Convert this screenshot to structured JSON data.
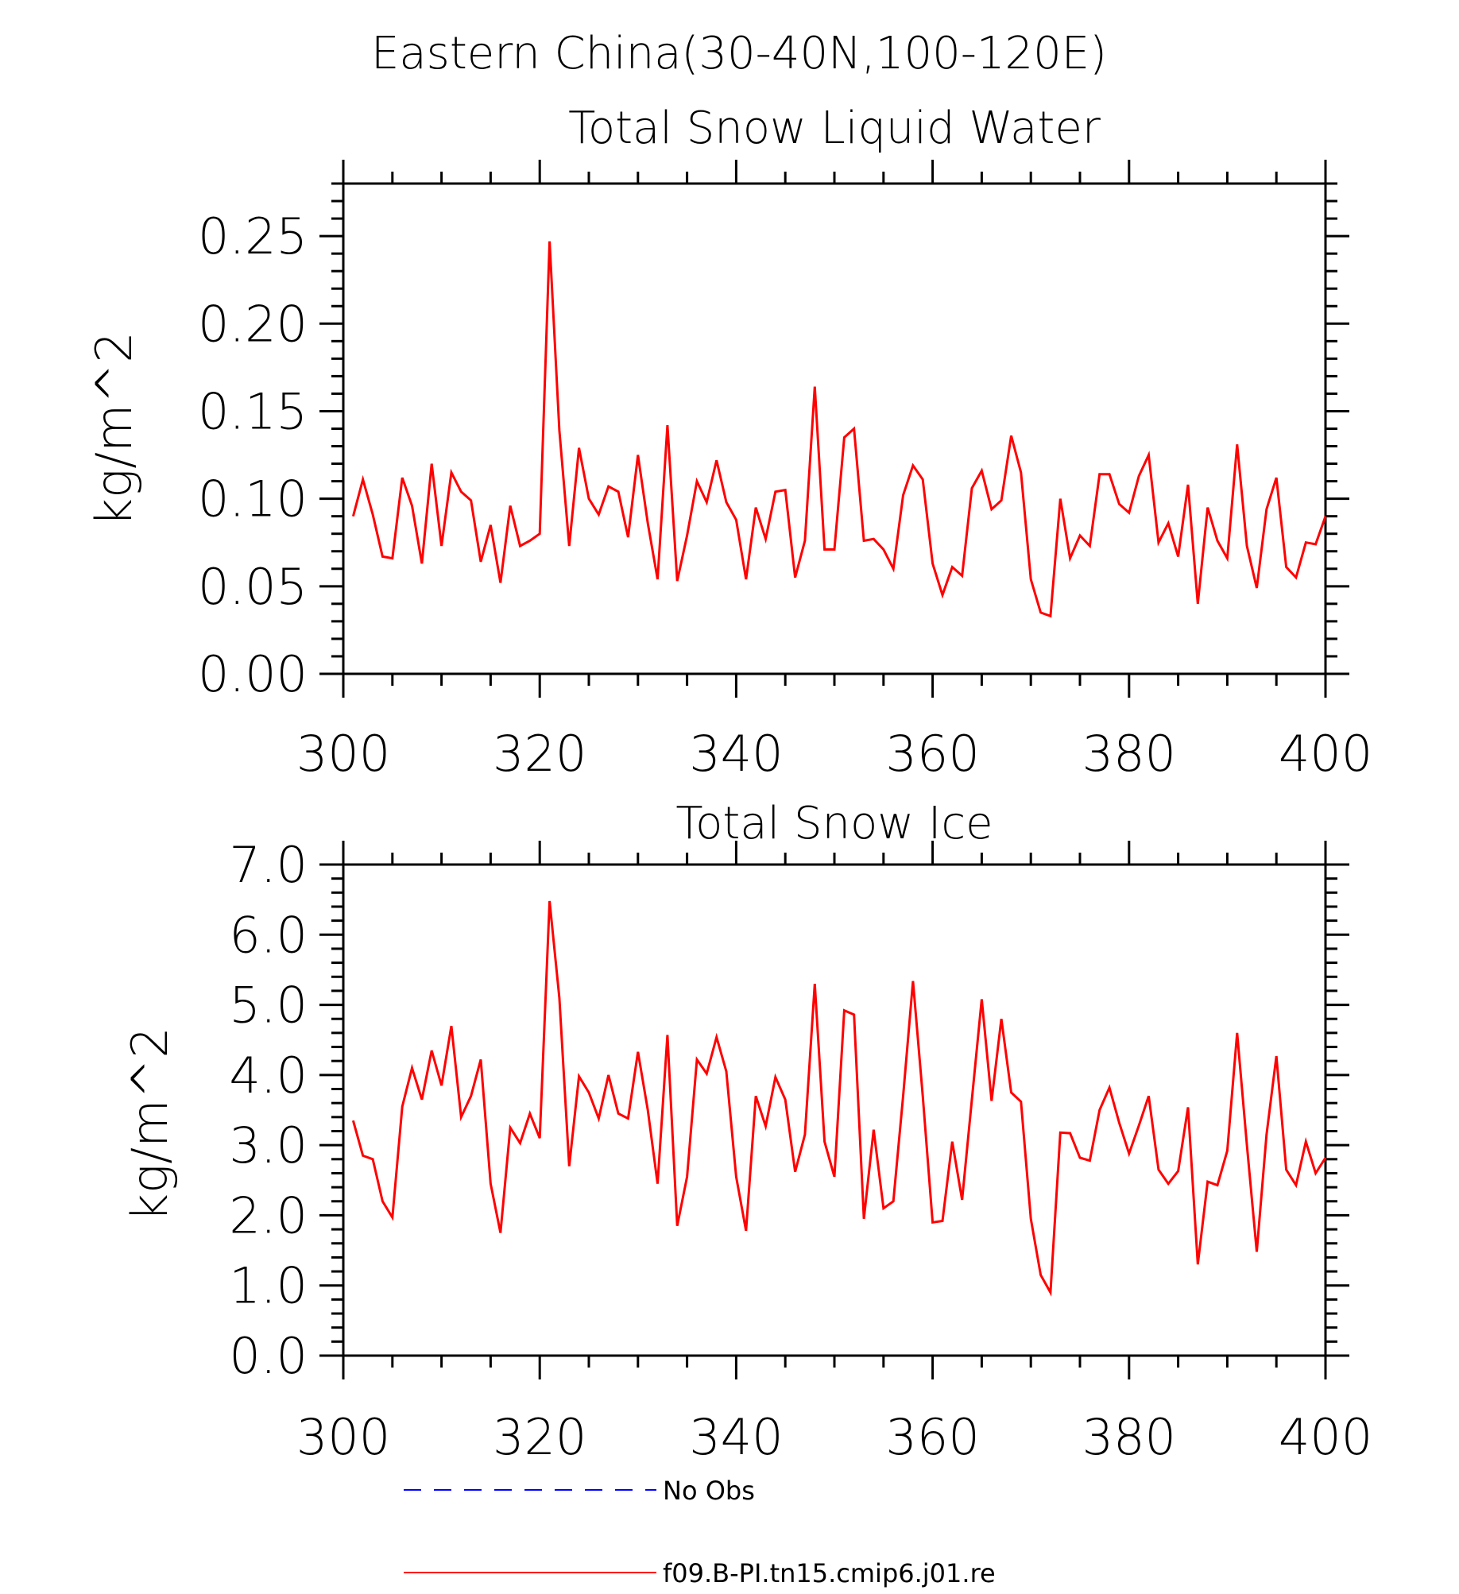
{
  "figure": {
    "title": "Eastern China(30-40N,100-120E)",
    "legend": [
      {
        "label": "No Obs",
        "color": "#0000ff",
        "style": "dashed"
      },
      {
        "label": "f09.B-PI.tn15.cmip6.j01.re",
        "color": "#ff0000",
        "style": "solid"
      }
    ]
  },
  "chart_data": [
    {
      "type": "line",
      "title": "Total Snow Liquid Water",
      "xlabel": "",
      "ylabel": "kg/m^2",
      "xlim": [
        300,
        400
      ],
      "ylim": [
        0.0,
        0.28
      ],
      "x_ticks": [
        300,
        320,
        340,
        360,
        380,
        400
      ],
      "x_tick_labels": [
        "300",
        "320",
        "340",
        "360",
        "380",
        "400"
      ],
      "y_ticks": [
        0.0,
        0.05,
        0.1,
        0.15,
        0.2,
        0.25
      ],
      "y_tick_labels": [
        "0.00",
        "0.05",
        "0.10",
        "0.15",
        "0.20",
        "0.25"
      ],
      "grid": false,
      "x_start": 301,
      "series": [
        {
          "name": "f09.B-PI.tn15.cmip6.j01.re",
          "color": "#ff0000",
          "values": [
            0.09,
            0.111,
            0.091,
            0.067,
            0.066,
            0.112,
            0.096,
            0.063,
            0.12,
            0.073,
            0.115,
            0.104,
            0.099,
            0.064,
            0.085,
            0.052,
            0.096,
            0.073,
            0.076,
            0.08,
            0.247,
            0.139,
            0.073,
            0.129,
            0.1,
            0.091,
            0.107,
            0.104,
            0.078,
            0.125,
            0.086,
            0.054,
            0.142,
            0.053,
            0.079,
            0.11,
            0.098,
            0.122,
            0.098,
            0.088,
            0.054,
            0.095,
            0.077,
            0.104,
            0.105,
            0.055,
            0.076,
            0.164,
            0.071,
            0.071,
            0.135,
            0.14,
            0.076,
            0.077,
            0.071,
            0.06,
            0.102,
            0.119,
            0.111,
            0.063,
            0.045,
            0.061,
            0.056,
            0.106,
            0.116,
            0.094,
            0.099,
            0.136,
            0.115,
            0.054,
            0.035,
            0.033,
            0.1,
            0.066,
            0.079,
            0.073,
            0.114,
            0.114,
            0.097,
            0.092,
            0.113,
            0.125,
            0.075,
            0.086,
            0.067,
            0.108,
            0.04,
            0.095,
            0.076,
            0.066,
            0.131,
            0.073,
            0.049,
            0.094,
            0.112,
            0.061,
            0.055,
            0.075,
            0.074,
            0.09
          ]
        }
      ]
    },
    {
      "type": "line",
      "title": "Total Snow Ice",
      "xlabel": "",
      "ylabel": "kg/m^2",
      "xlim": [
        300,
        400
      ],
      "ylim": [
        0.0,
        7.0
      ],
      "x_ticks": [
        300,
        320,
        340,
        360,
        380,
        400
      ],
      "x_tick_labels": [
        "300",
        "320",
        "340",
        "360",
        "380",
        "400"
      ],
      "y_ticks": [
        0,
        1,
        2,
        3,
        4,
        5,
        6,
        7
      ],
      "y_tick_labels": [
        "0.0",
        "1.0",
        "2.0",
        "3.0",
        "4.0",
        "5.0",
        "6.0",
        "7.0"
      ],
      "grid": false,
      "x_start": 301,
      "series": [
        {
          "name": "f09.B-PI.tn15.cmip6.j01.re",
          "color": "#ff0000",
          "values": [
            3.35,
            2.85,
            2.8,
            2.2,
            1.97,
            3.55,
            4.1,
            3.65,
            4.35,
            3.85,
            4.7,
            3.4,
            3.7,
            4.22,
            2.45,
            1.75,
            3.25,
            3.03,
            3.45,
            3.1,
            6.48,
            5.1,
            2.7,
            3.98,
            3.75,
            3.38,
            4.0,
            3.45,
            3.38,
            4.33,
            3.5,
            2.45,
            4.57,
            1.85,
            2.55,
            4.22,
            4.02,
            4.54,
            4.05,
            2.55,
            1.78,
            3.7,
            3.27,
            3.97,
            3.65,
            2.62,
            3.15,
            5.3,
            3.05,
            2.55,
            4.92,
            4.86,
            1.95,
            3.22,
            2.1,
            2.2,
            3.7,
            5.34,
            3.7,
            1.9,
            1.92,
            3.05,
            2.22,
            3.65,
            5.08,
            3.63,
            4.8,
            3.75,
            3.62,
            1.95,
            1.15,
            0.9,
            3.18,
            3.17,
            2.82,
            2.78,
            3.5,
            3.82,
            3.32,
            2.88,
            3.28,
            3.7,
            2.65,
            2.45,
            2.63,
            3.54,
            1.3,
            2.48,
            2.43,
            2.92,
            4.6,
            3.0,
            1.48,
            3.15,
            4.27,
            2.65,
            2.43,
            3.05,
            2.6,
            2.82
          ]
        }
      ]
    }
  ]
}
